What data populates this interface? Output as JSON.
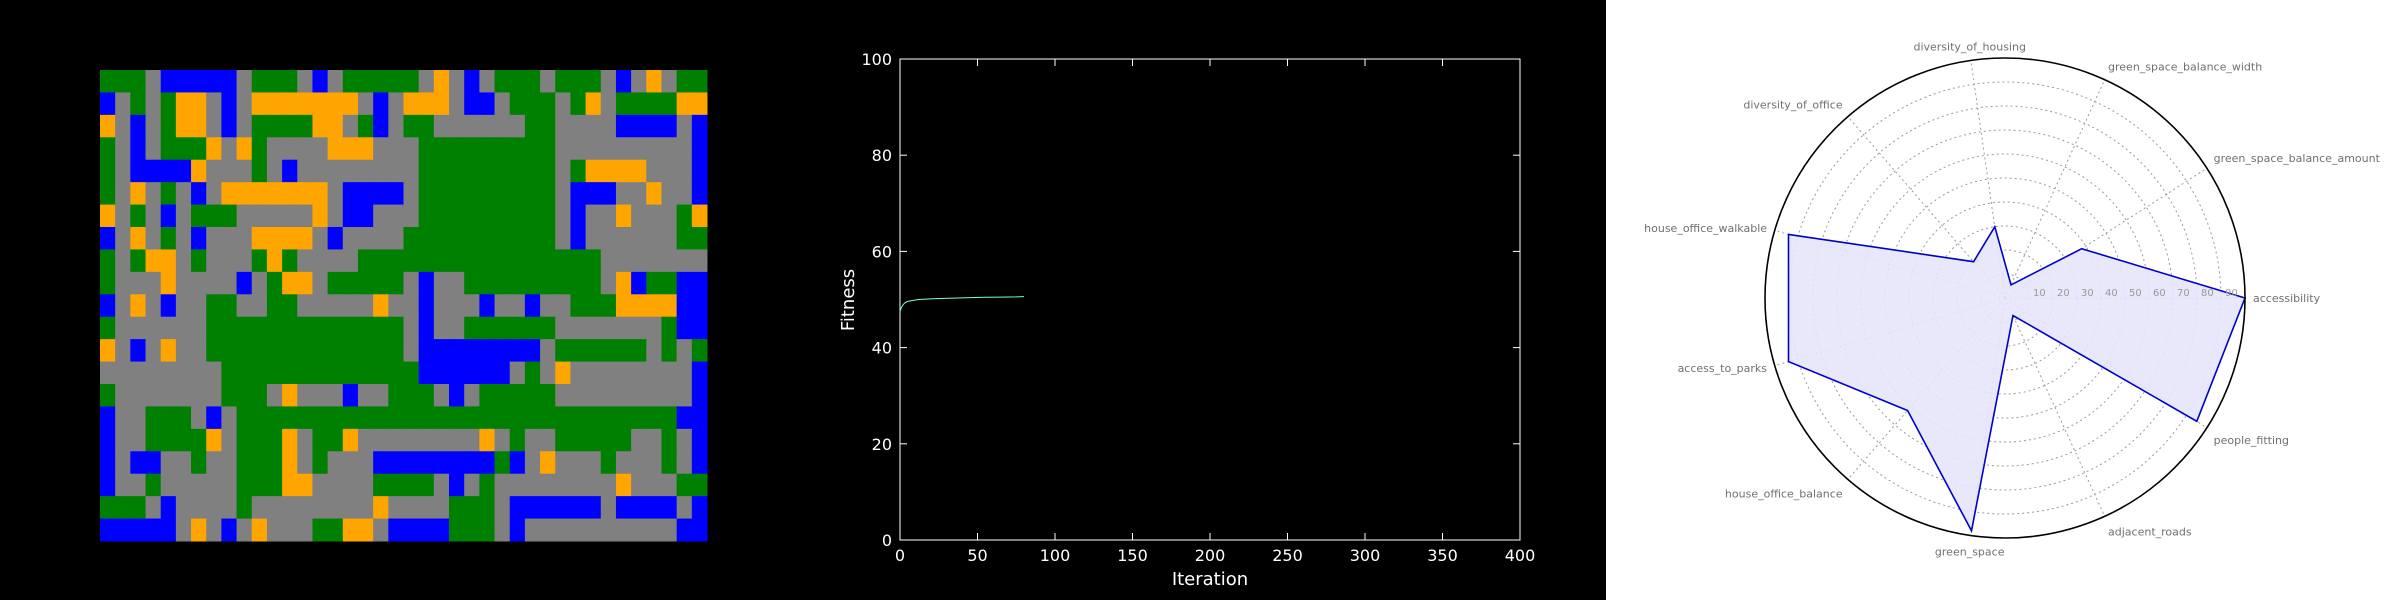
{
  "grid_map": {
    "colors": {
      "g": "#008000",
      "r": "#808080",
      "b": "#0000ff",
      "o": "#ffa500"
    },
    "rows": [
      "gggrbbbbbrgggrbrgggggrorbrgggrgggrbrorgg",
      "brgrgoorbrooooooorbrooorbbrgggrgorggggoo",
      "orbrgoorbrggggoorgbrggrrrrrrggrrrrbbbbrb",
      "grbrgggorogrrrrooorrrgggggggggrrrrrrrrrb",
      "grbbbborrrgrbrrrrrrrrgggggggggrgoooorrrb",
      "grorgrbrooooooorbbbbrgggggggggrbbbrrorrb",
      "orgrbrgggrrrrrorbbrrrgggggggggrbrrorrrgo",
      "brorgrbrrroooorbrrrrggggggggggrbrrrrrrgg",
      "grgoorgrrrgogrrrrggggggggggggggggrrrrrrr",
      "grrrorrrrbrgoorgggggrbrrgggggggggrobggbb",
      "brorbrrggrrggrrrrrorrbrrrbrrbrrgggoooobb",
      "grrrrrrgggggggggggggrbrrggggggrrrrrrrgbb",
      "orbrorrgggggggggggggrbbbbbbbbrggggggrgrg",
      "rrrrrrrrgggggggggggggbbbbbbrgrorrrrrrrrb",
      "grrrrrrrgggrorrrbrrgggrbrgggggrrrrrrrrrb",
      "brrgggrbrgggggggggggggggggggggggggggggbb",
      "brrggggorgggorggorrrrrrrrorgrrgggggrrgrb",
      "brbbrrgrrgggorgrrrbbbbbbbbgbrorrrgrrrgrb",
      "brrgrrrrrgggoorrrrggggrbrgrrrrrrrrorrrgg",
      "gggrbrrrrgrrrrrrrrorrrrgggrbbbbbbrbbbbrb",
      "bbbbbrorbrorrrggoorbbbbgggrbrrrrrrrrrrbb"
    ]
  },
  "chart_data": [
    {
      "type": "line",
      "title": "",
      "xlabel": "Iteration",
      "ylabel": "Fitness",
      "xlim": [
        0,
        400
      ],
      "ylim": [
        0,
        100
      ],
      "xticks": [
        0,
        50,
        100,
        150,
        200,
        250,
        300,
        350,
        400
      ],
      "yticks": [
        0,
        20,
        40,
        60,
        80,
        100
      ],
      "grid": false,
      "series": [
        {
          "color": "#7fffd4",
          "x": [
            0,
            1,
            2,
            3,
            5,
            8,
            12,
            18,
            25,
            35,
            45,
            55,
            65,
            75,
            80
          ],
          "y": [
            47.5,
            48.4,
            48.9,
            49.3,
            49.6,
            49.8,
            50.0,
            50.1,
            50.2,
            50.3,
            50.4,
            50.45,
            50.5,
            50.55,
            50.6
          ]
        }
      ]
    },
    {
      "type": "radar",
      "rlim": [
        0,
        100
      ],
      "r_ticks": [
        "10",
        "20",
        "30",
        "40",
        "50",
        "60",
        "70",
        "80",
        "90"
      ],
      "grid": true,
      "fill_color": "#e6e6fa",
      "line_color": "#0000cd",
      "axes": [
        "accessibility",
        "green_space_balance_amount",
        "green_space_balance_width",
        "diversity_of_housing",
        "diversity_of_office",
        "house_office_walkable",
        "access_to_parks",
        "house_office_balance",
        "green_space",
        "adjacent_roads",
        "people_fitting"
      ],
      "values": [
        100,
        38,
        6,
        30,
        20,
        94,
        94,
        62,
        98,
        8,
        95
      ]
    }
  ]
}
